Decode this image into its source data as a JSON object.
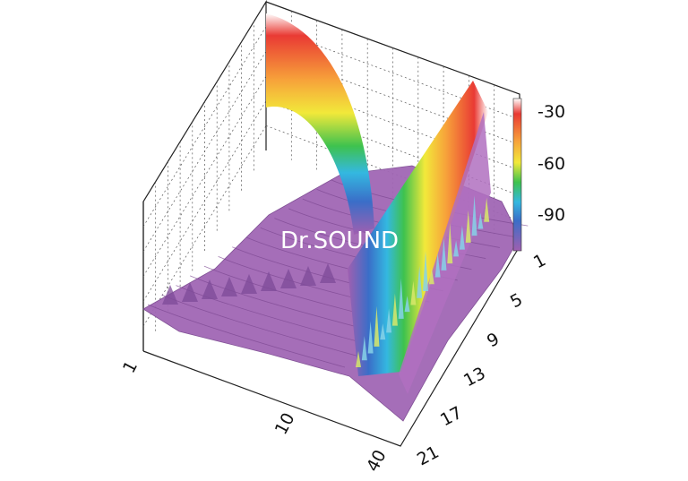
{
  "watermark": "Dr.SOUND",
  "chart_data": {
    "type": "surface3d",
    "title": "",
    "xlabel": "",
    "ylabel": "",
    "zlabel": "",
    "x_axis": {
      "ticks": [
        "1",
        "10",
        "40"
      ],
      "scale": "log",
      "range": [
        1,
        40
      ]
    },
    "y_axis": {
      "ticks": [
        "1",
        "5",
        "9",
        "13",
        "17",
        "21"
      ],
      "range": [
        1,
        21
      ]
    },
    "z_axis": {
      "ticks": [
        "-30",
        "-60",
        "-90"
      ],
      "range": [
        -110,
        -20
      ]
    },
    "colorbar": {
      "ticks": [
        "-30",
        "-60",
        "-90"
      ],
      "range": [
        -110,
        -20
      ],
      "colormap": [
        "#a05fb0",
        "#3a6ec8",
        "#34b8e0",
        "#3ec24e",
        "#f2e93a",
        "#f7a23a",
        "#e93a34",
        "#ffffff"
      ]
    },
    "grid": true,
    "features": [
      {
        "kind": "curved ridge",
        "from_x": 1,
        "level_db": -20
      },
      {
        "kind": "straight ridge",
        "at_x": 40,
        "level_db": -20
      },
      {
        "kind": "floor",
        "level_db": -100
      }
    ]
  }
}
